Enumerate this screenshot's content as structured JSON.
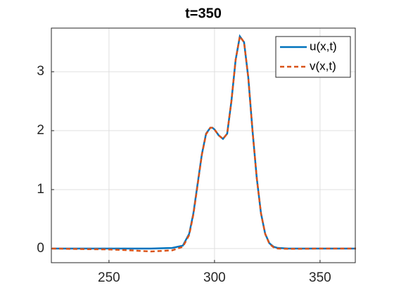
{
  "chart_data": {
    "type": "line",
    "title": "t=350",
    "x": [
      223,
      230,
      240,
      250,
      260,
      270,
      280,
      285,
      288,
      290,
      292,
      294,
      296,
      298,
      299,
      300,
      302,
      304,
      306,
      308,
      310,
      312,
      314,
      316,
      318,
      320,
      322,
      324,
      326,
      328,
      330,
      335,
      340,
      350,
      367
    ],
    "series": [
      {
        "name": "u(x,t)",
        "color": "#0072bd",
        "dash": "solid",
        "values": [
          0,
          0,
          0,
          0,
          0,
          0,
          0.01,
          0.05,
          0.25,
          0.6,
          1.1,
          1.6,
          1.95,
          2.05,
          2.05,
          2.02,
          1.92,
          1.86,
          1.95,
          2.5,
          3.2,
          3.6,
          3.5,
          2.9,
          2.0,
          1.2,
          0.6,
          0.25,
          0.09,
          0.03,
          0.01,
          0,
          0,
          0,
          0
        ]
      },
      {
        "name": "v(x,t)",
        "color": "#d95319",
        "dash": "dashed",
        "values": [
          0,
          -0.005,
          -0.01,
          -0.015,
          -0.03,
          -0.05,
          -0.03,
          0.03,
          0.23,
          0.58,
          1.08,
          1.59,
          1.94,
          2.05,
          2.05,
          2.02,
          1.92,
          1.86,
          1.95,
          2.5,
          3.2,
          3.6,
          3.5,
          2.9,
          2.0,
          1.2,
          0.6,
          0.25,
          0.08,
          0.02,
          0,
          -0.005,
          -0.005,
          0,
          0
        ]
      }
    ],
    "xlim": [
      222.7,
      366.7
    ],
    "xticks": [
      250,
      300,
      350
    ],
    "ylim": [
      -0.24,
      3.74
    ],
    "yticks": [
      0,
      1,
      2,
      3
    ],
    "grid": true,
    "legend": "northeast"
  }
}
